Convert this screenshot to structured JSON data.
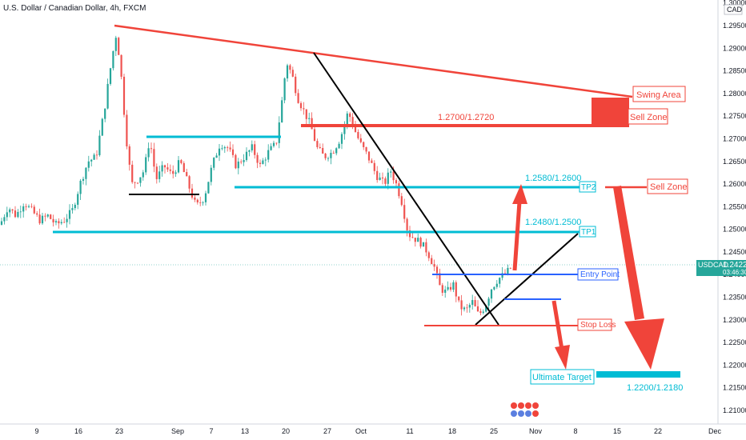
{
  "header": {
    "symbol_title": "U.S. Dollar / Canadian Dollar, 4h, FXCM",
    "currency": "CAD"
  },
  "colors": {
    "up": "#26a69a",
    "down": "#ef5350",
    "red_line": "#f0443a",
    "cyan_line": "#00bcd4",
    "blue_line": "#2962ff",
    "black_line": "#000000",
    "price_tag": "#26a69a"
  },
  "price_tag": {
    "symbol": "USDCAD",
    "price": "1.24222",
    "countdown": "03:46:30"
  },
  "annotations": {
    "swing_area": "Swing  Area",
    "sell_zone_top": "Sell Zone",
    "sell_zone_mid": "Sell Zone",
    "zone_1": "1.2700/1.2720",
    "zone_2": "1.2580/1.2600",
    "zone_3": "1.2480/1.2500",
    "tp1": "TP1",
    "tp2": "TP2",
    "entry": "Entry Point",
    "stop_loss": "Stop Loss",
    "ultimate_target": "Ultimate Target",
    "target_zone": "1.2200/1.2180"
  },
  "chart_data": {
    "type": "candlestick",
    "title": "U.S. Dollar / Canadian Dollar, 4h, FXCM",
    "ylim": [
      1.2075,
      1.3025
    ],
    "y_ticks": [
      "1.21000",
      "1.21500",
      "1.22000",
      "1.22500",
      "1.23000",
      "1.23500",
      "1.24000",
      "1.24500",
      "1.25000",
      "1.25500",
      "1.26000",
      "1.26500",
      "1.27000",
      "1.27500",
      "1.28000",
      "1.28500",
      "1.29000",
      "1.29500",
      "1.30000"
    ],
    "x_ticks": [
      "9",
      "16",
      "23",
      "Sep",
      "7",
      "13",
      "20",
      "27",
      "Oct",
      "11",
      "18",
      "25",
      "Nov",
      "8",
      "15",
      "22",
      "Dec"
    ],
    "price_path": [
      [
        0,
        1.251
      ],
      [
        10,
        1.255
      ],
      [
        20,
        1.253
      ],
      [
        30,
        1.256
      ],
      [
        40,
        1.254
      ],
      [
        50,
        1.252
      ],
      [
        60,
        1.253
      ],
      [
        70,
        1.251
      ],
      [
        80,
        1.252
      ],
      [
        90,
        1.254
      ],
      [
        100,
        1.26
      ],
      [
        110,
        1.265
      ],
      [
        120,
        1.266
      ],
      [
        130,
        1.276
      ],
      [
        140,
        1.288
      ],
      [
        145,
        1.293
      ],
      [
        150,
        1.287
      ],
      [
        155,
        1.276
      ],
      [
        160,
        1.266
      ],
      [
        165,
        1.26
      ],
      [
        172,
        1.261
      ],
      [
        180,
        1.263
      ],
      [
        187,
        1.27
      ],
      [
        195,
        1.261
      ],
      [
        205,
        1.264
      ],
      [
        215,
        1.262
      ],
      [
        225,
        1.265
      ],
      [
        235,
        1.26
      ],
      [
        245,
        1.255
      ],
      [
        255,
        1.257
      ],
      [
        265,
        1.264
      ],
      [
        275,
        1.269
      ],
      [
        285,
        1.268
      ],
      [
        295,
        1.264
      ],
      [
        305,
        1.266
      ],
      [
        315,
        1.268
      ],
      [
        325,
        1.264
      ],
      [
        335,
        1.267
      ],
      [
        345,
        1.269
      ],
      [
        352,
        1.278
      ],
      [
        358,
        1.287
      ],
      [
        365,
        1.284
      ],
      [
        372,
        1.279
      ],
      [
        380,
        1.276
      ],
      [
        388,
        1.273
      ],
      [
        396,
        1.268
      ],
      [
        405,
        1.266
      ],
      [
        415,
        1.267
      ],
      [
        425,
        1.27
      ],
      [
        435,
        1.276
      ],
      [
        443,
        1.272
      ],
      [
        450,
        1.269
      ],
      [
        460,
        1.266
      ],
      [
        470,
        1.262
      ],
      [
        480,
        1.26
      ],
      [
        488,
        1.263
      ],
      [
        495,
        1.26
      ],
      [
        502,
        1.256
      ],
      [
        510,
        1.249
      ],
      [
        518,
        1.248
      ],
      [
        526,
        1.247
      ],
      [
        534,
        1.245
      ],
      [
        542,
        1.242
      ],
      [
        550,
        1.237
      ],
      [
        558,
        1.236
      ],
      [
        566,
        1.238
      ],
      [
        574,
        1.233
      ],
      [
        582,
        1.232
      ],
      [
        590,
        1.234
      ],
      [
        598,
        1.231
      ],
      [
        606,
        1.233
      ],
      [
        614,
        1.237
      ],
      [
        622,
        1.239
      ],
      [
        630,
        1.24
      ],
      [
        636,
        1.241
      ],
      [
        641,
        1.2422
      ]
    ]
  }
}
